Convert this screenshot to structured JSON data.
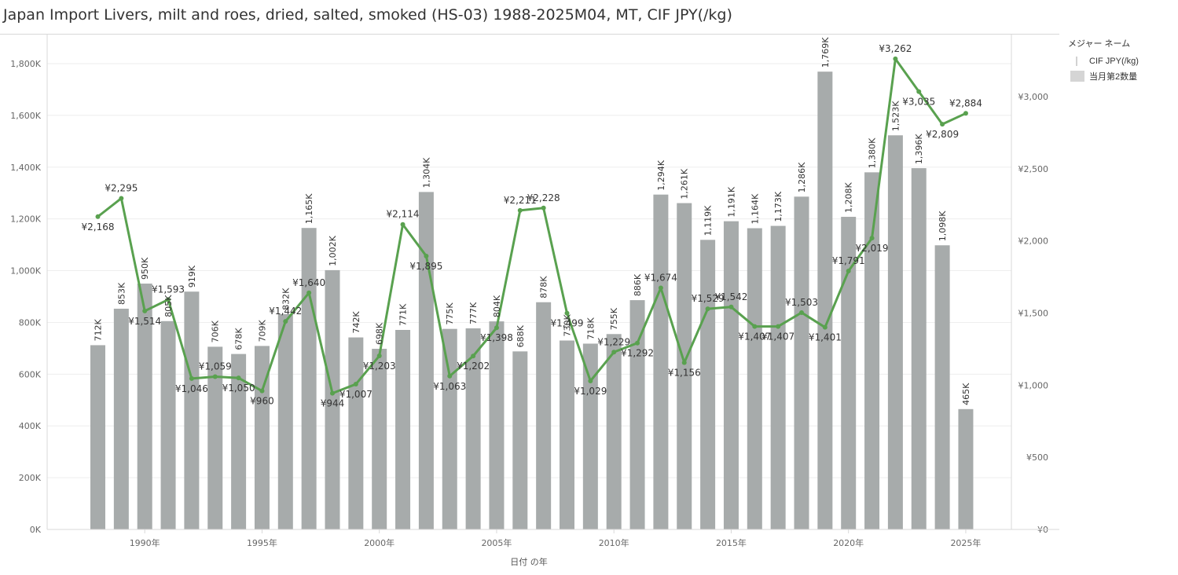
{
  "title": "Japan Import Livers, milt and roes, dried, salted, smoked (HS-03) 1988-2025M04, MT, CIF JPY(/kg)",
  "legend": {
    "title": "メジャー ネーム",
    "items": [
      {
        "label": "CIF JPY(/kg)",
        "symbol": "line"
      },
      {
        "label": "当月第2数量",
        "symbol": "bar"
      }
    ]
  },
  "colors": {
    "bar": "#a7abab",
    "line": "#59a14f",
    "grid": "#eeeeee",
    "axis": "#d8d8d8",
    "tick_text": "#666666"
  },
  "chart_data": {
    "type": "bar",
    "xlabel": "日付 の年",
    "x_tick_labels": [
      "1990年",
      "1995年",
      "2000年",
      "2005年",
      "2010年",
      "2015年",
      "2020年",
      "2025年"
    ],
    "left_axis": {
      "ticks": [
        "0K",
        "200K",
        "400K",
        "600K",
        "800K",
        "1,000K",
        "1,200K",
        "1,400K",
        "1,600K",
        "1,800K"
      ],
      "ylim": [
        0,
        1800000
      ]
    },
    "right_axis": {
      "ticks": [
        "¥0",
        "¥500",
        "¥1,000",
        "¥1,500",
        "¥2,000",
        "¥2,500",
        "¥3,000"
      ],
      "ylim": [
        0,
        3000
      ]
    },
    "grid": true,
    "legend_position": "right",
    "categories": [
      1988,
      1989,
      1990,
      1991,
      1992,
      1993,
      1994,
      1995,
      1996,
      1997,
      1998,
      1999,
      2000,
      2001,
      2002,
      2003,
      2004,
      2005,
      2006,
      2007,
      2008,
      2009,
      2010,
      2011,
      2012,
      2013,
      2014,
      2015,
      2016,
      2017,
      2018,
      2019,
      2020,
      2021,
      2022,
      2023,
      2024,
      2025
    ],
    "series": [
      {
        "name": "当月第2数量",
        "type": "bar",
        "axis": "left",
        "values": [
          712000,
          853000,
          950000,
          805000,
          919000,
          706000,
          678000,
          709000,
          832000,
          1165000,
          1002000,
          742000,
          698000,
          771000,
          1304000,
          775000,
          777000,
          804000,
          688000,
          878000,
          730000,
          718000,
          755000,
          886000,
          1294000,
          1261000,
          1119000,
          1191000,
          1164000,
          1173000,
          1286000,
          1769000,
          1208000,
          1380000,
          1523000,
          1396000,
          1098000,
          465000
        ],
        "labels": [
          "712K",
          "853K",
          "950K",
          "805K",
          "919K",
          "706K",
          "678K",
          "709K",
          "832K",
          "1,165K",
          "1,002K",
          "742K",
          "698K",
          "771K",
          "1,304K",
          "775K",
          "777K",
          "804K",
          "688K",
          "878K",
          "730K",
          "718K",
          "755K",
          "886K",
          "1,294K",
          "1,261K",
          "1,119K",
          "1,191K",
          "1,164K",
          "1,173K",
          "1,286K",
          "1,769K",
          "1,208K",
          "1,380K",
          "1,523K",
          "1,396K",
          "1,098K",
          "465K"
        ]
      },
      {
        "name": "CIF JPY(/kg)",
        "type": "line",
        "axis": "right",
        "values": [
          2168,
          2295,
          1514,
          1593,
          1046,
          1059,
          1050,
          960,
          1442,
          1640,
          944,
          1007,
          1203,
          2114,
          1895,
          1063,
          1202,
          1398,
          2211,
          2228,
          1499,
          1029,
          1229,
          1292,
          1674,
          1156,
          1529,
          1542,
          1407,
          1407,
          1503,
          1401,
          1791,
          2019,
          3262,
          3035,
          2809,
          2884
        ],
        "labels": [
          "¥2,168",
          "¥2,295",
          "¥1,514",
          "¥1,593",
          "¥1,046",
          "¥1,059",
          "¥1,050",
          "¥960",
          "¥1,442",
          "¥1,640",
          "¥944",
          "¥1,007",
          "¥1,203",
          "¥2,114",
          "¥1,895",
          "¥1,063",
          "¥1,202",
          "¥1,398",
          "¥2,211",
          "¥2,228",
          "¥1,499",
          "¥1,029",
          "¥1,229",
          "¥1,292",
          "¥1,674",
          "¥1,156",
          "¥1,529",
          "¥1,542",
          "¥1,407",
          "¥1,407",
          "¥1,503",
          "¥1,401",
          "¥1,791",
          "¥2,019",
          "¥3,262",
          "¥3,035",
          "¥2,809",
          "¥2,884"
        ]
      }
    ]
  }
}
